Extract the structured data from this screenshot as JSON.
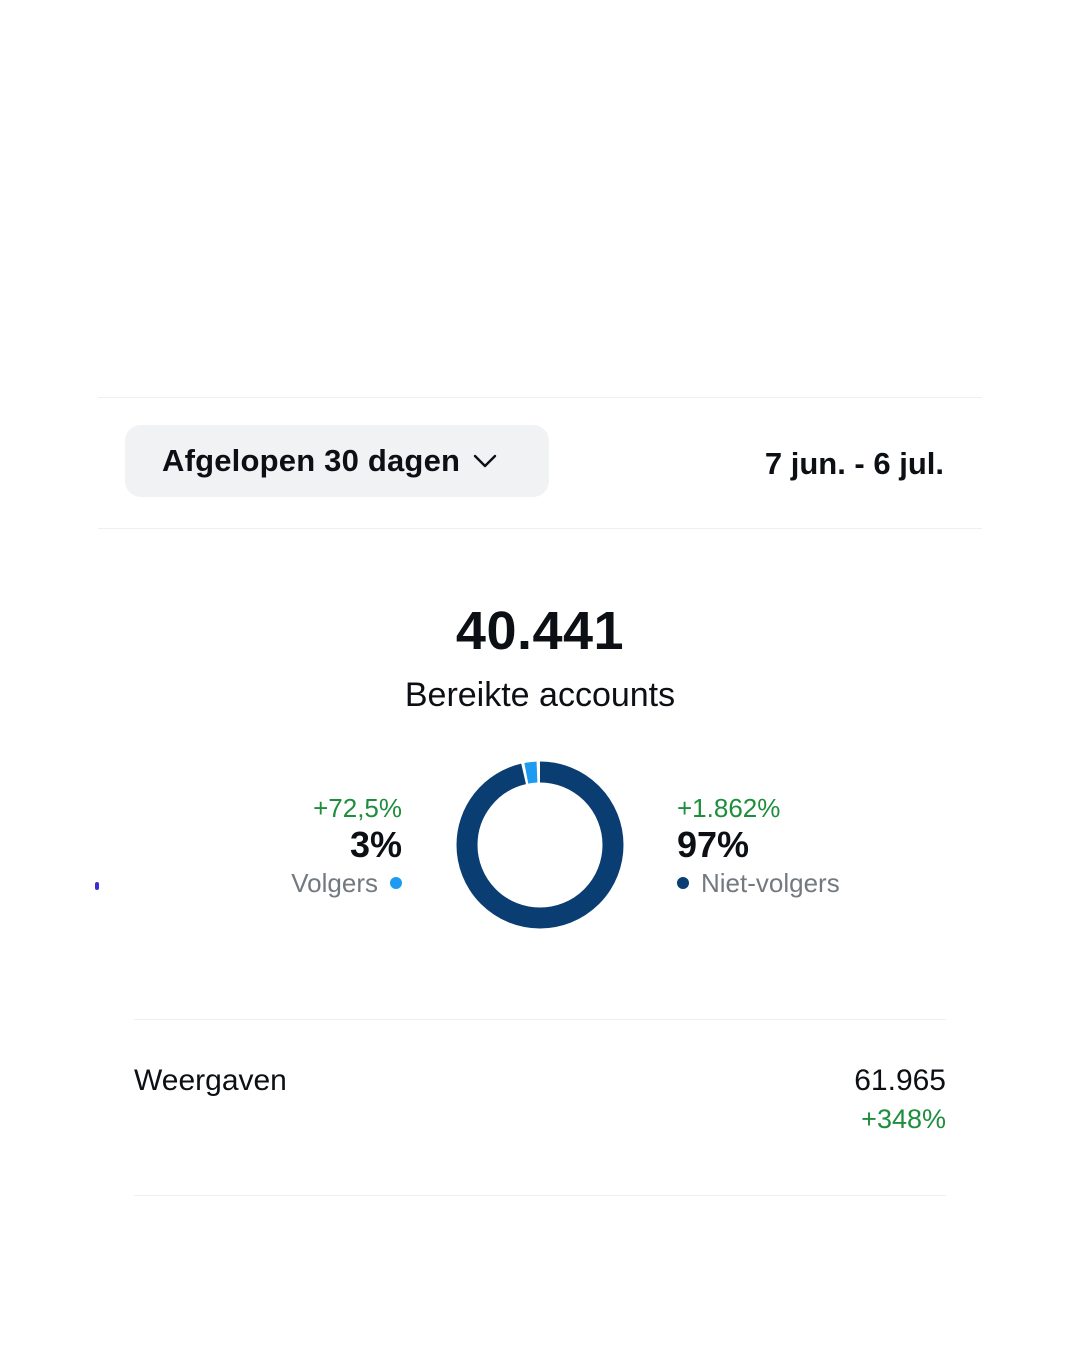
{
  "header": {
    "range_selector_label": "Afgelopen 30 dagen",
    "date_range": "7 jun. - 6 jul."
  },
  "summary": {
    "total_value": "40.441",
    "total_label": "Bereikte accounts"
  },
  "followers": {
    "change": "+72,5%",
    "percent": "3%",
    "label": "Volgers",
    "color": "#1d9bf0",
    "share": 0.03
  },
  "non_followers": {
    "change": "+1.862%",
    "percent": "97%",
    "label": "Niet-volgers",
    "color": "#0a3d72",
    "share": 0.97
  },
  "metrics": [
    {
      "label": "Weergaven",
      "value": "61.965",
      "change": "+348%"
    }
  ],
  "colors": {
    "positive_change": "#1e8e3e",
    "selector_background": "#f1f2f4"
  },
  "icons": {
    "range_selector": "chevron-down-icon"
  }
}
